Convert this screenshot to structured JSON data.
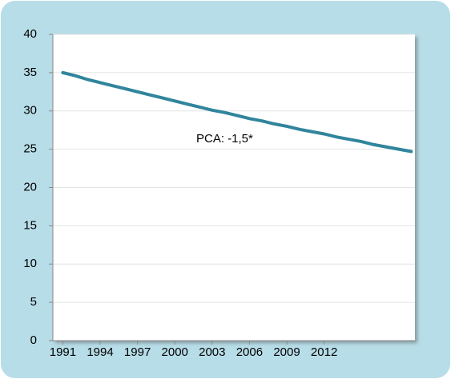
{
  "chart_data": {
    "type": "line",
    "x": [
      1991,
      1992,
      1993,
      1994,
      1995,
      1996,
      1997,
      1998,
      1999,
      2000,
      2001,
      2002,
      2003,
      2004,
      2005,
      2006,
      2007,
      2008,
      2009,
      2010,
      2011,
      2012,
      2013,
      2014,
      2015,
      2016,
      2017,
      2018,
      2019
    ],
    "series": [
      {
        "name": null,
        "color": "#31859c",
        "values": [
          35.0,
          34.6,
          34.1,
          33.7,
          33.3,
          32.9,
          32.5,
          32.1,
          31.7,
          31.3,
          30.9,
          30.5,
          30.1,
          29.8,
          29.4,
          29.0,
          28.7,
          28.3,
          28.0,
          27.6,
          27.3,
          27.0,
          26.6,
          26.3,
          26.0,
          25.6,
          25.3,
          25.0,
          24.7
        ]
      }
    ],
    "annotations": [
      "PCA: -1,5*"
    ],
    "xlim": [
      1990.2,
      2019.3
    ],
    "xticks": [
      1991,
      1994,
      1997,
      2000,
      2003,
      2006,
      2009,
      2012
    ],
    "ylim": [
      0,
      40
    ],
    "yticks": [
      0,
      5,
      10,
      15,
      20,
      25,
      30,
      35,
      40
    ],
    "grid": true
  }
}
